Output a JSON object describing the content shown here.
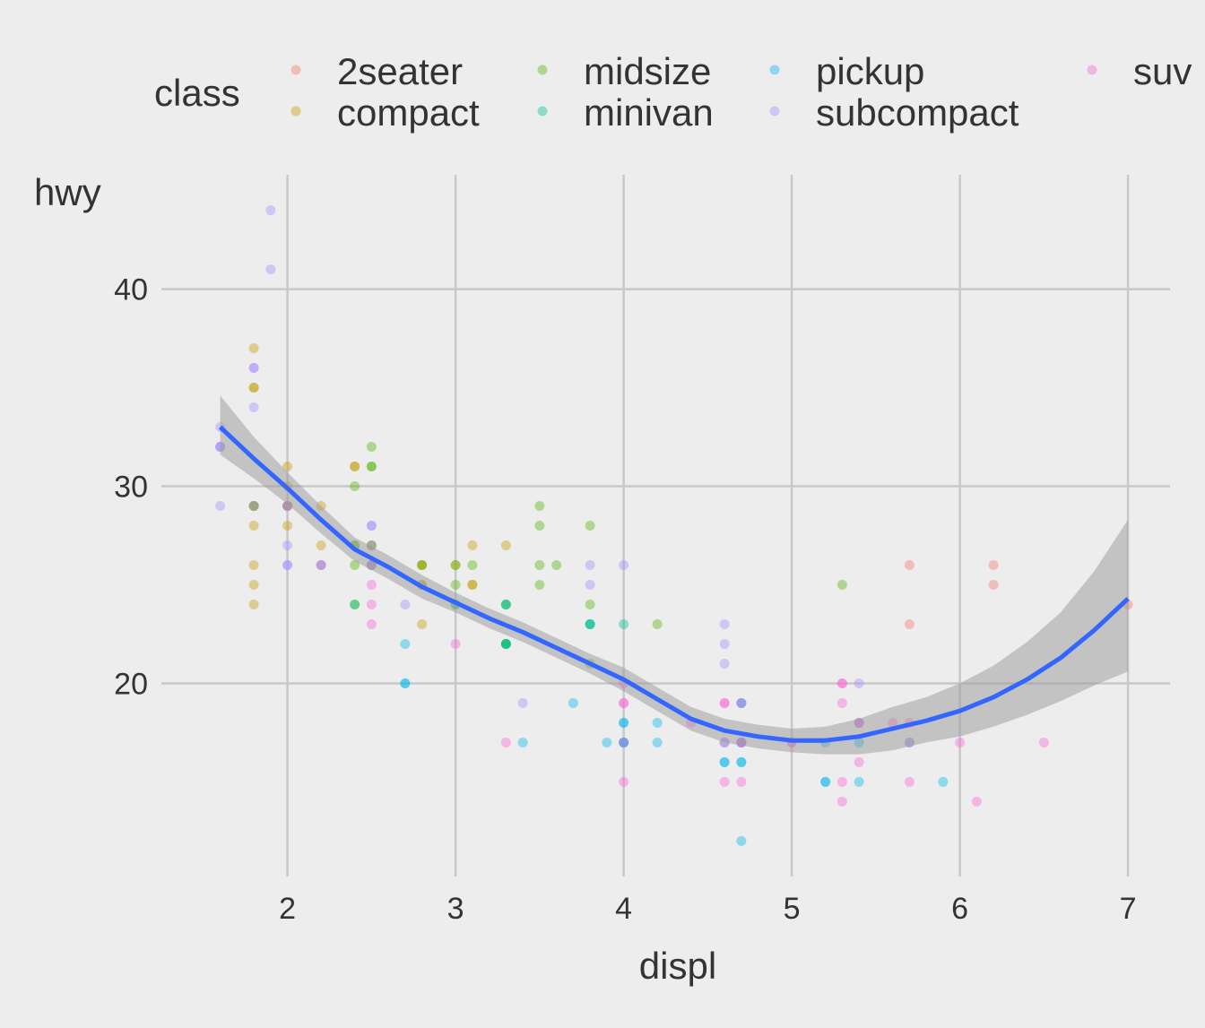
{
  "chart_data": {
    "type": "scatter",
    "title": "",
    "xlabel": "displ",
    "ylabel": "hwy",
    "xlim": [
      1.25,
      7.25
    ],
    "ylim": [
      10.2,
      45.8
    ],
    "xticks": [
      2,
      3,
      4,
      5,
      6,
      7
    ],
    "yticks": [
      20,
      30,
      40
    ],
    "grid": true,
    "background": "#ededed",
    "grid_color": "#c8c8c8",
    "point_opacity": 0.4,
    "legend": {
      "title": "class",
      "position": "top",
      "columns": [
        [
          "2seater",
          "compact"
        ],
        [
          "midsize",
          "minivan"
        ],
        [
          "pickup",
          "subcompact"
        ],
        [
          "suv"
        ]
      ]
    },
    "series": [
      {
        "name": "2seater",
        "color": "#F8766D",
        "x": [
          5.7,
          5.7,
          6.2,
          6.2,
          7.0
        ],
        "y": [
          26,
          23,
          26,
          25,
          24
        ]
      },
      {
        "name": "compact",
        "color": "#C49A00",
        "x": [
          1.8,
          1.8,
          2.0,
          2.0,
          2.8,
          2.8,
          3.1,
          1.8,
          1.8,
          1.8,
          1.8,
          2.8,
          2.8,
          3.1,
          3.1,
          2.0,
          2.0,
          2.0,
          2.2,
          2.2,
          2.4,
          2.4,
          3.0,
          3.3,
          1.8,
          1.8,
          1.8,
          2.5,
          2.5,
          2.2,
          2.5,
          2.0,
          2.0,
          2.8
        ],
        "y": [
          29,
          29,
          31,
          30,
          26,
          26,
          27,
          26,
          25,
          28,
          24,
          25,
          25,
          25,
          25,
          29,
          29,
          28,
          29,
          27,
          31,
          31,
          26,
          27,
          35,
          37,
          35,
          26,
          27,
          26,
          26,
          29,
          29,
          23
        ]
      },
      {
        "name": "midsize",
        "color": "#53B400",
        "x": [
          2.4,
          2.4,
          3.1,
          3.5,
          3.6,
          2.4,
          3.0,
          3.3,
          3.3,
          3.3,
          3.8,
          3.8,
          3.8,
          5.3,
          2.5,
          2.5,
          3.0,
          3.0,
          3.5,
          2.5,
          2.5,
          3.5,
          1.8,
          2.8,
          4.2,
          2.4,
          2.4,
          3.5
        ],
        "y": [
          27,
          30,
          26,
          29,
          26,
          24,
          24,
          22,
          22,
          24,
          24,
          21,
          28,
          25,
          32,
          31,
          26,
          25,
          26,
          27,
          31,
          28,
          29,
          26,
          23,
          26,
          27,
          25
        ]
      },
      {
        "name": "minivan",
        "color": "#00C094",
        "x": [
          2.4,
          3.0,
          3.3,
          3.3,
          3.3,
          3.3,
          3.8,
          3.8,
          3.8,
          4.0,
          3.3
        ],
        "y": [
          24,
          24,
          22,
          22,
          24,
          24,
          23,
          23,
          23,
          23,
          22
        ]
      },
      {
        "name": "pickup",
        "color": "#00B6EB",
        "x": [
          2.7,
          2.7,
          3.4,
          4.0,
          4.0,
          4.7,
          4.7,
          4.7,
          4.7,
          5.2,
          5.2,
          3.7,
          3.9,
          4.7,
          4.7,
          4.7,
          5.2,
          5.7,
          5.9,
          4.6,
          5.4,
          2.7,
          4.0,
          4.2,
          4.6,
          5.4,
          4.0,
          4.0,
          4.6,
          5.4,
          4.2
        ],
        "y": [
          20,
          22,
          17,
          17,
          18,
          16,
          16,
          17,
          19,
          15,
          17,
          19,
          17,
          12,
          17,
          19,
          15,
          17,
          15,
          16,
          17,
          20,
          17,
          18,
          16,
          15,
          17,
          18,
          17,
          18,
          17
        ]
      },
      {
        "name": "subcompact",
        "color": "#A58AFF",
        "x": [
          3.8,
          3.8,
          4.0,
          4.6,
          4.6,
          4.6,
          5.4,
          1.6,
          1.6,
          1.6,
          1.6,
          1.6,
          1.8,
          1.8,
          1.8,
          2.0,
          2.5,
          2.5,
          2.2,
          2.2,
          2.5,
          2.5,
          2.0,
          1.9,
          1.9,
          2.0,
          2.0,
          2.5,
          2.7,
          1.8,
          2.0,
          3.4
        ],
        "y": [
          26,
          25,
          26,
          23,
          22,
          21,
          20,
          33,
          32,
          32,
          29,
          32,
          34,
          36,
          36,
          29,
          26,
          27,
          26,
          26,
          28,
          26,
          26,
          44,
          41,
          29,
          26,
          28,
          24,
          29,
          27,
          19
        ]
      },
      {
        "name": "suv",
        "color": "#FB61D7",
        "x": [
          5.3,
          5.3,
          5.3,
          5.7,
          6.0,
          5.7,
          5.3,
          6.5,
          4.0,
          4.0,
          4.6,
          5.4,
          4.7,
          4.7,
          4.7,
          5.3,
          5.7,
          6.1,
          4.0,
          4.6,
          4.6,
          5.0,
          4.4,
          5.4,
          2.5,
          2.5,
          2.5,
          3.0,
          4.7,
          4.0,
          4.0,
          4.6,
          5.0,
          5.4,
          3.3,
          5.6
        ],
        "y": [
          20,
          15,
          20,
          17,
          17,
          15,
          19,
          17,
          19,
          17,
          19,
          18,
          17,
          15,
          17,
          14,
          18,
          14,
          20,
          15,
          19,
          17,
          18,
          16,
          23,
          24,
          25,
          22,
          19,
          19,
          15,
          17,
          17,
          18,
          17,
          18
        ]
      }
    ],
    "smooth": {
      "color": "#3366FF",
      "band_color": "#999999",
      "x": [
        1.6,
        1.8,
        2.0,
        2.2,
        2.4,
        2.6,
        2.8,
        3.0,
        3.2,
        3.4,
        3.6,
        3.8,
        4.0,
        4.2,
        4.4,
        4.6,
        4.8,
        5.0,
        5.2,
        5.4,
        5.6,
        5.8,
        6.0,
        6.2,
        6.4,
        6.6,
        6.8,
        7.0
      ],
      "y": [
        33.0,
        31.4,
        29.9,
        28.3,
        26.8,
        25.9,
        24.9,
        24.1,
        23.3,
        22.6,
        21.8,
        21.0,
        20.2,
        19.2,
        18.2,
        17.6,
        17.3,
        17.1,
        17.1,
        17.3,
        17.7,
        18.1,
        18.6,
        19.3,
        20.2,
        21.3,
        22.7,
        24.3
      ],
      "lower": [
        31.6,
        30.4,
        29.1,
        27.6,
        26.2,
        25.3,
        24.3,
        23.6,
        22.8,
        22.1,
        21.3,
        20.5,
        19.6,
        18.6,
        17.6,
        17.0,
        16.7,
        16.5,
        16.4,
        16.4,
        16.6,
        17.0,
        17.3,
        17.8,
        18.4,
        19.1,
        19.9,
        20.6
      ],
      "upper": [
        34.6,
        32.5,
        30.7,
        29.0,
        27.4,
        26.5,
        25.5,
        24.6,
        23.8,
        23.1,
        22.3,
        21.5,
        20.8,
        19.8,
        18.8,
        18.2,
        17.9,
        17.7,
        17.8,
        18.2,
        18.8,
        19.3,
        20.0,
        20.9,
        22.1,
        23.6,
        25.7,
        28.3
      ]
    }
  }
}
